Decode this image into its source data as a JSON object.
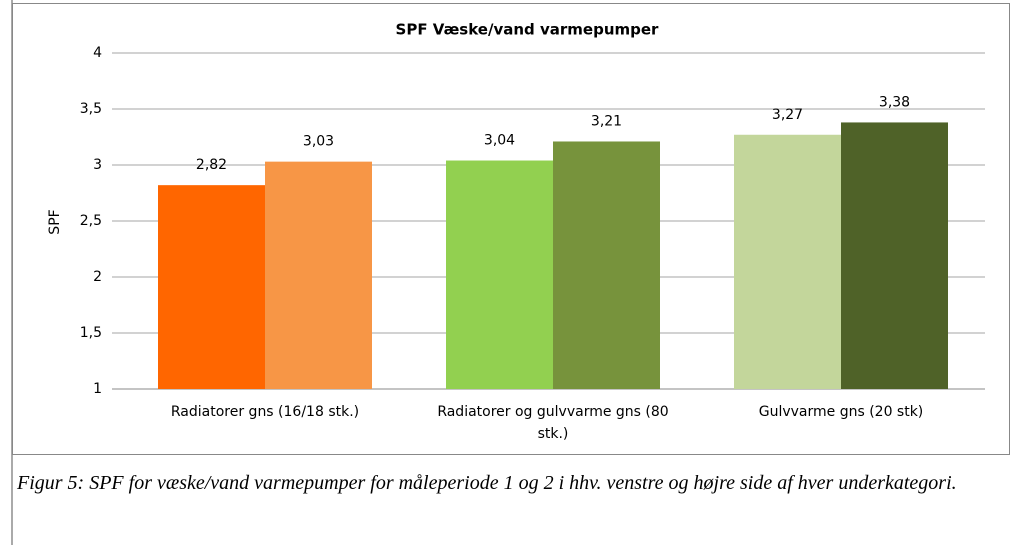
{
  "chart_data": {
    "type": "grouped_bar",
    "title": "SPF Væske/vand varmepumper",
    "y_label": "SPF",
    "categories": [
      "Radiatorer gns (16/18 stk.)",
      "Radiatorer og gulvvarme gns (80 stk.)",
      "Gulvvarme gns (20 stk)"
    ],
    "values": [
      [
        2.82,
        3.03
      ],
      [
        3.04,
        3.21
      ],
      [
        3.27,
        3.38
      ]
    ],
    "value_labels": [
      [
        "2,82",
        "3,03"
      ],
      [
        "3,04",
        "3,21"
      ],
      [
        "3,27",
        "3,38"
      ]
    ],
    "colors": [
      [
        "#ff6600",
        "#f79646"
      ],
      [
        "#92d050",
        "#77933c"
      ],
      [
        "#c3d69b",
        "#4f6228"
      ]
    ],
    "ylim": [
      1,
      4
    ],
    "yticks": [
      1,
      {
        "value": 1.5,
        "label": "1,5"
      },
      2,
      {
        "value": 2.5,
        "label": "2,5"
      },
      3,
      {
        "value": 3.5,
        "label": "3,5"
      },
      4
    ],
    "grid": true,
    "caption": "Figur 5: SPF for væske/vand varmepumper for måleperiode 1 og 2 i hhv. venstre og højre side af hver underkategori."
  }
}
